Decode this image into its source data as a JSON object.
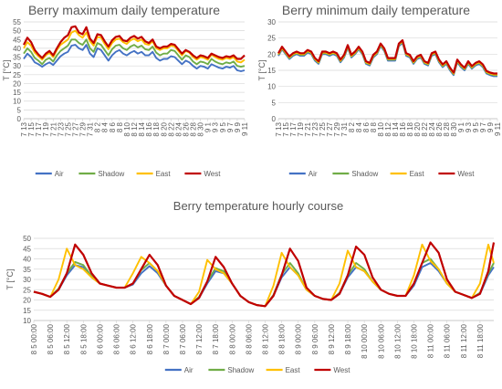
{
  "colors": {
    "Air": "#4472C4",
    "Shadow": "#70AD47",
    "East": "#FFC000",
    "West": "#C00000"
  },
  "chart_data": [
    {
      "type": "line",
      "title": "Berry maximum daily temperature",
      "ylabel": "T [°C]",
      "ylim": [
        0,
        55
      ],
      "yticks": [
        0,
        5,
        10,
        15,
        20,
        25,
        30,
        35,
        40,
        45,
        50,
        55
      ],
      "grid": true,
      "legend": "bottom",
      "categories": [
        "7 13",
        "7 15",
        "7 17",
        "7 19",
        "7 21",
        "7 23",
        "7 25",
        "7 27",
        "7 29",
        "7 31",
        "8 2",
        "8 4",
        "8 6",
        "8 8",
        "8 10",
        "8 12",
        "8 14",
        "8 16",
        "8 18",
        "8 20",
        "8 22",
        "8 24",
        "8 26",
        "8 28",
        "8 30",
        "9 1",
        "9 3",
        "9 5",
        "9 7",
        "9 9",
        "9 11"
      ],
      "x": [
        0,
        0.5,
        1,
        1.5,
        2,
        2.5,
        3,
        3.5,
        4,
        4.5,
        5,
        5.5,
        6,
        6.5,
        7,
        7.5,
        8,
        8.5,
        9,
        9.5,
        10,
        10.5,
        11,
        11.5,
        12,
        12.5,
        13,
        13.5,
        14,
        14.5,
        15,
        15.5,
        16,
        16.5,
        17,
        17.5,
        18,
        18.5,
        19,
        19.5,
        20,
        20.5,
        21,
        21.5,
        22,
        22.5,
        23,
        23.5,
        24,
        24.5,
        25,
        25.5,
        26,
        26.5,
        27,
        27.5,
        28,
        28.5,
        29,
        29.5,
        30
      ],
      "series": [
        {
          "name": "Air",
          "values": [
            34,
            37,
            35,
            32,
            31,
            29.5,
            31,
            32,
            30.5,
            33,
            35.5,
            37,
            38,
            41.5,
            42,
            40,
            39,
            42,
            37,
            35,
            40,
            39,
            36,
            33,
            36,
            38,
            39,
            37,
            36,
            37.5,
            38.5,
            37,
            38,
            36,
            36,
            38,
            34.5,
            33,
            34,
            34,
            35.5,
            35,
            33,
            31,
            33,
            32,
            30,
            28.5,
            30,
            29.5,
            28.5,
            31,
            30,
            29,
            28.5,
            29.5,
            29,
            30,
            27.5,
            27,
            27.5
          ]
        },
        {
          "name": "Shadow",
          "values": [
            37,
            40,
            38,
            34.5,
            33,
            31,
            33.5,
            34.5,
            32.5,
            36,
            38.5,
            40,
            41.5,
            45,
            45,
            43,
            42,
            45,
            40,
            38,
            43,
            42,
            39,
            36,
            39.5,
            41.5,
            42,
            40,
            39,
            41,
            42,
            40.5,
            41.5,
            39.5,
            39,
            41,
            37.5,
            36,
            37,
            37,
            39,
            38.5,
            36,
            33.5,
            36,
            35,
            32.5,
            31,
            32.5,
            32,
            31,
            34,
            32.5,
            31.5,
            31,
            32,
            31.5,
            32.5,
            30,
            29.5,
            30
          ]
        },
        {
          "name": "East",
          "values": [
            40,
            43.5,
            41.5,
            37.5,
            35.5,
            33.5,
            36,
            37.5,
            35,
            39,
            42,
            43.5,
            45,
            49,
            50,
            47.5,
            46,
            49,
            44,
            41.5,
            46.5,
            46,
            42.5,
            39.5,
            43,
            45,
            45.5,
            43.5,
            42.5,
            44.5,
            45.5,
            44,
            45,
            42.5,
            42,
            44,
            40,
            39,
            40,
            40,
            41.5,
            41,
            38.5,
            36,
            38.5,
            37.5,
            35,
            33.5,
            35,
            34.5,
            33.5,
            36.5,
            35,
            34,
            33.5,
            34.5,
            34,
            35,
            32.5,
            32,
            33.5
          ]
        },
        {
          "name": "West",
          "values": [
            42,
            46,
            43.5,
            39,
            36.5,
            34.5,
            37,
            38.5,
            36,
            40,
            43.5,
            46,
            47.5,
            52,
            52.5,
            49,
            48,
            52,
            45.5,
            43,
            48,
            47.5,
            44,
            41,
            44.5,
            46.5,
            47,
            44.5,
            44,
            46,
            47,
            45.5,
            46.5,
            44,
            43,
            45,
            41,
            40,
            41,
            41,
            42.5,
            42,
            39.5,
            37,
            39,
            38,
            36,
            34.5,
            36,
            35.5,
            34.5,
            37,
            36,
            35,
            34.5,
            35.5,
            35,
            36,
            34,
            34,
            36
          ]
        }
      ]
    },
    {
      "type": "line",
      "title": "Berry minimum daily temperature",
      "ylabel": "T [°C]",
      "ylim": [
        0,
        30
      ],
      "yticks": [
        0,
        5,
        10,
        15,
        20,
        25,
        30
      ],
      "grid": true,
      "legend": "bottom",
      "categories": [
        "7 13",
        "7 15",
        "7 17",
        "7 19",
        "7 21",
        "7 23",
        "7 25",
        "7 27",
        "7 29",
        "7 31",
        "8 2",
        "8 4",
        "8 6",
        "8 8",
        "8 10",
        "8 12",
        "8 14",
        "8 16",
        "8 18",
        "8 20",
        "8 22",
        "8 24",
        "8 26",
        "8 28",
        "8 30",
        "9 1",
        "9 3",
        "9 5",
        "9 7",
        "9 9",
        "9 11"
      ],
      "x": [
        0,
        0.5,
        1,
        1.5,
        2,
        2.5,
        3,
        3.5,
        4,
        4.5,
        5,
        5.5,
        6,
        6.5,
        7,
        7.5,
        8,
        8.5,
        9,
        9.5,
        10,
        10.5,
        11,
        11.5,
        12,
        12.5,
        13,
        13.5,
        14,
        14.5,
        15,
        15.5,
        16,
        16.5,
        17,
        17.5,
        18,
        18.5,
        19,
        19.5,
        20,
        20.5,
        21,
        21.5,
        22,
        22.5,
        23,
        23.5,
        24,
        24.5,
        25,
        25.5,
        26,
        26.5,
        27,
        27.5,
        28,
        28.5,
        29,
        29.5,
        30
      ],
      "series": [
        {
          "name": "Air",
          "values": [
            19.5,
            21.5,
            20,
            18.5,
            19.5,
            20,
            19.5,
            19.5,
            20.5,
            20,
            18,
            17,
            20,
            20,
            19.5,
            20,
            19.5,
            17.5,
            19,
            22,
            19,
            20,
            21.5,
            20,
            17,
            16.5,
            19,
            20,
            22.5,
            21,
            18,
            18,
            18,
            22.5,
            23.5,
            19.5,
            19,
            17,
            18.5,
            19,
            17,
            16.5,
            19.5,
            20,
            17.5,
            16,
            17,
            15,
            13.5,
            17.5,
            16,
            15,
            17,
            15.5,
            16.5,
            17,
            16,
            14,
            13.5,
            13.2,
            13.2
          ]
        },
        {
          "name": "Shadow",
          "values": [
            19.8,
            21.8,
            20.3,
            18.8,
            19.8,
            20.3,
            19.8,
            19.8,
            20.8,
            20.3,
            18.3,
            17.3,
            20.3,
            20.3,
            19.8,
            20.3,
            19.8,
            17.8,
            19.3,
            22.3,
            19.3,
            20.3,
            21.8,
            20.3,
            17.3,
            16.8,
            19.3,
            20.3,
            22.8,
            21.3,
            18.3,
            18.3,
            18.3,
            22.8,
            23.8,
            19.8,
            19.3,
            17.3,
            18.8,
            19.3,
            17.3,
            16.8,
            19.8,
            20.3,
            17.8,
            16.3,
            17.3,
            15.3,
            13.8,
            17.8,
            16.3,
            15.3,
            17.3,
            15.8,
            16.8,
            17.3,
            16.3,
            14.3,
            13.8,
            13.5,
            13.5
          ]
        },
        {
          "name": "East",
          "values": [
            20,
            22,
            20.5,
            19,
            20,
            20.5,
            20,
            20,
            21,
            20.5,
            18.5,
            17.5,
            20.5,
            20.5,
            20,
            20.5,
            20,
            18,
            19.5,
            22.5,
            19.5,
            20.5,
            22,
            20.5,
            17.5,
            17,
            19.5,
            20.5,
            23,
            21.5,
            18.5,
            18.5,
            18.5,
            23,
            24,
            20,
            19.5,
            17.5,
            19,
            19.5,
            17.5,
            17,
            20,
            20.5,
            18,
            16.5,
            17.5,
            15.5,
            14,
            18,
            16.5,
            15.5,
            17.5,
            16,
            17,
            17.5,
            16.5,
            14.5,
            14,
            13.7,
            13.7
          ]
        },
        {
          "name": "West",
          "values": [
            20.3,
            22.3,
            20.8,
            19.3,
            20.3,
            20.8,
            20.3,
            20.3,
            21.3,
            20.8,
            18.8,
            17.8,
            20.8,
            20.8,
            20.3,
            20.8,
            20.3,
            18.3,
            19.8,
            22.8,
            19.8,
            20.8,
            22.3,
            20.8,
            17.8,
            17.3,
            19.8,
            20.8,
            23.3,
            21.8,
            18.8,
            18.8,
            18.8,
            23.3,
            24.3,
            20.3,
            19.8,
            17.8,
            19.3,
            19.8,
            17.8,
            17.3,
            20.3,
            20.8,
            18.3,
            16.8,
            17.8,
            15.8,
            14.3,
            18.3,
            16.8,
            15.8,
            17.8,
            16.3,
            17.3,
            17.8,
            16.8,
            14.8,
            14.3,
            14,
            14
          ]
        }
      ]
    },
    {
      "type": "line",
      "title": "Berry temperature hourly course",
      "ylabel": "T [°C]",
      "ylim": [
        10,
        50
      ],
      "yticks": [
        10,
        15,
        20,
        25,
        30,
        35,
        40,
        45,
        50
      ],
      "grid": true,
      "legend": "bottom",
      "categories": [
        "8 5 00:00",
        "8 5 06:00",
        "8 5 12:00",
        "8 5 18:00",
        "8 6 00:00",
        "8 6 06:00",
        "8 6 12:00",
        "8 6 18:00",
        "8 7 00:00",
        "8 7 06:00",
        "8 7 12:00",
        "8 7 18:00",
        "8 8 00:00",
        "8 8 06:00",
        "8 8 12:00",
        "8 8 18:00",
        "8 9 00:00",
        "8 9 06:00",
        "8 9 12:00",
        "8 9 18:00",
        "8 10 00:00",
        "8 10 06:00",
        "8 10 12:00",
        "8 10 18:00",
        "8 11 00:00",
        "8 11 06:00",
        "8 11 12:00",
        "8 11 18:00"
      ],
      "x": [
        0,
        3,
        6,
        9,
        12,
        15,
        18,
        21,
        24,
        27,
        30,
        33,
        36,
        39,
        42,
        45,
        48,
        51,
        54,
        57,
        60,
        63,
        66,
        69,
        72,
        75,
        78,
        81,
        84,
        87,
        90,
        93,
        96,
        99,
        102,
        105,
        108,
        111,
        114,
        117,
        120,
        123,
        126,
        129,
        132,
        135,
        138,
        141,
        144,
        147,
        150,
        153,
        156,
        159,
        162,
        165,
        167
      ],
      "series": [
        {
          "name": "Air",
          "values": [
            24,
            23,
            21.5,
            25,
            32,
            37,
            36,
            31,
            28,
            27,
            26,
            26,
            27.5,
            33,
            36.5,
            33,
            27,
            22,
            20,
            18,
            21,
            28,
            34,
            33,
            28,
            22,
            19,
            17.5,
            17,
            22,
            31,
            36,
            32,
            25,
            22,
            20.5,
            20,
            23,
            31,
            36,
            34,
            29,
            25,
            23,
            22,
            22,
            27,
            36,
            38,
            34,
            28,
            24,
            22.5,
            21,
            23,
            32,
            36
          ]
        },
        {
          "name": "Shadow",
          "values": [
            24,
            23,
            21.5,
            25.5,
            33,
            38.5,
            37,
            31.5,
            28,
            27,
            26,
            26,
            28,
            34.5,
            38,
            34,
            27,
            22,
            20,
            18,
            21.5,
            29,
            35.5,
            34,
            28,
            22,
            19,
            17.5,
            17,
            22.5,
            32.5,
            38,
            33,
            25,
            22,
            20.5,
            20,
            23.5,
            32,
            38,
            35,
            29,
            25,
            23,
            22,
            22,
            28,
            38,
            40,
            35,
            28,
            24,
            22.5,
            21,
            23.5,
            33,
            38
          ]
        },
        {
          "name": "East",
          "values": [
            24,
            23,
            21.5,
            30,
            45,
            37,
            35,
            31,
            28,
            27,
            26,
            26,
            33,
            41,
            38,
            34,
            27,
            22,
            20,
            18,
            24,
            39.5,
            35,
            33,
            28,
            22,
            19,
            17.5,
            17,
            27,
            43,
            36,
            32,
            25,
            22,
            20.5,
            20,
            28,
            44,
            36,
            34,
            29,
            25,
            23,
            22,
            22,
            32,
            47,
            39,
            35,
            28,
            24,
            22.5,
            21,
            28,
            47,
            38
          ]
        },
        {
          "name": "West",
          "values": [
            24,
            23,
            21.5,
            25,
            33,
            47,
            42,
            33,
            28,
            27,
            26,
            26,
            28,
            35,
            42,
            37,
            27,
            22,
            20,
            18,
            21,
            29,
            41,
            36,
            28,
            22,
            19,
            17.5,
            17,
            22,
            32,
            45,
            39,
            26,
            22,
            20.5,
            20,
            23,
            32,
            46,
            42,
            31,
            25,
            23,
            22,
            22,
            28,
            38,
            48,
            43,
            30,
            24,
            22.5,
            21,
            23,
            34,
            48
          ]
        }
      ]
    }
  ]
}
